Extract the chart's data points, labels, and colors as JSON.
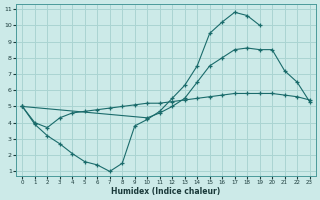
{
  "xlabel": "Humidex (Indice chaleur)",
  "bg_color": "#cceae8",
  "line_color": "#1a6b6b",
  "grid_color": "#aad4d2",
  "xlim": [
    -0.5,
    23.5
  ],
  "ylim": [
    0.7,
    11.3
  ],
  "xticks": [
    0,
    1,
    2,
    3,
    4,
    5,
    6,
    7,
    8,
    9,
    10,
    11,
    12,
    13,
    14,
    15,
    16,
    17,
    18,
    19,
    20,
    21,
    22,
    23
  ],
  "yticks": [
    1,
    2,
    3,
    4,
    5,
    6,
    7,
    8,
    9,
    10,
    11
  ],
  "line_max_x": [
    0,
    1,
    2,
    3,
    4,
    5,
    6,
    7,
    8,
    9,
    10,
    11,
    12,
    13,
    14,
    15,
    16,
    17,
    18,
    19
  ],
  "line_max_y": [
    5.0,
    3.9,
    3.2,
    2.7,
    2.1,
    1.6,
    1.4,
    1.0,
    1.5,
    3.8,
    4.2,
    4.7,
    5.5,
    6.3,
    7.5,
    9.5,
    10.2,
    10.8,
    10.6,
    10.0
  ],
  "line_mid_x": [
    0,
    10,
    11,
    12,
    13,
    14,
    15,
    16,
    17,
    18,
    19,
    20,
    21,
    22,
    23
  ],
  "line_mid_y": [
    5.0,
    4.3,
    4.6,
    5.0,
    5.5,
    6.5,
    7.5,
    8.0,
    8.5,
    8.6,
    8.5,
    8.5,
    7.2,
    6.5,
    5.3
  ],
  "line_lin_x": [
    0,
    1,
    2,
    3,
    4,
    5,
    6,
    7,
    8,
    9,
    10,
    11,
    12,
    13,
    14,
    15,
    16,
    17,
    18,
    19,
    20,
    21,
    22,
    23
  ],
  "line_lin_y": [
    5.0,
    4.0,
    3.7,
    4.3,
    4.6,
    4.7,
    4.8,
    4.9,
    5.0,
    5.1,
    5.2,
    5.2,
    5.3,
    5.4,
    5.5,
    5.6,
    5.7,
    5.8,
    5.8,
    5.8,
    5.8,
    5.7,
    5.6,
    5.4
  ]
}
